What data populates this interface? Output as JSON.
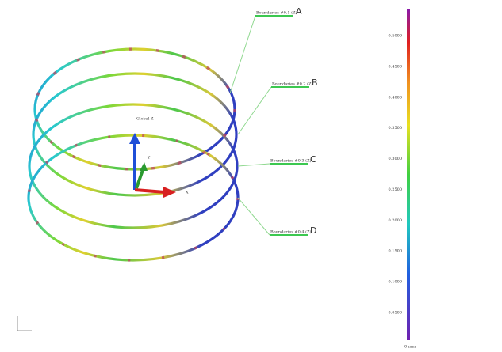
{
  "callouts": [
    {
      "letter": "A",
      "label": "Boundaries #0.1 (Z)"
    },
    {
      "letter": "B",
      "label": "Boundaries #0.2 (Z)"
    },
    {
      "letter": "C",
      "label": "Boundaries #0.3 (Z)"
    },
    {
      "letter": "D",
      "label": "Boundaries #0.4 (Z)"
    }
  ],
  "triad": {
    "z": "Global Z",
    "x": "X",
    "y": "Y"
  },
  "colorbar": {
    "ticks": [
      "0.5000",
      "0.4500",
      "0.4000",
      "0.3500",
      "0.3000",
      "0.2500",
      "0.2000",
      "0.1500",
      "0.1000",
      "0.0500"
    ],
    "unit": "0 mm"
  }
}
